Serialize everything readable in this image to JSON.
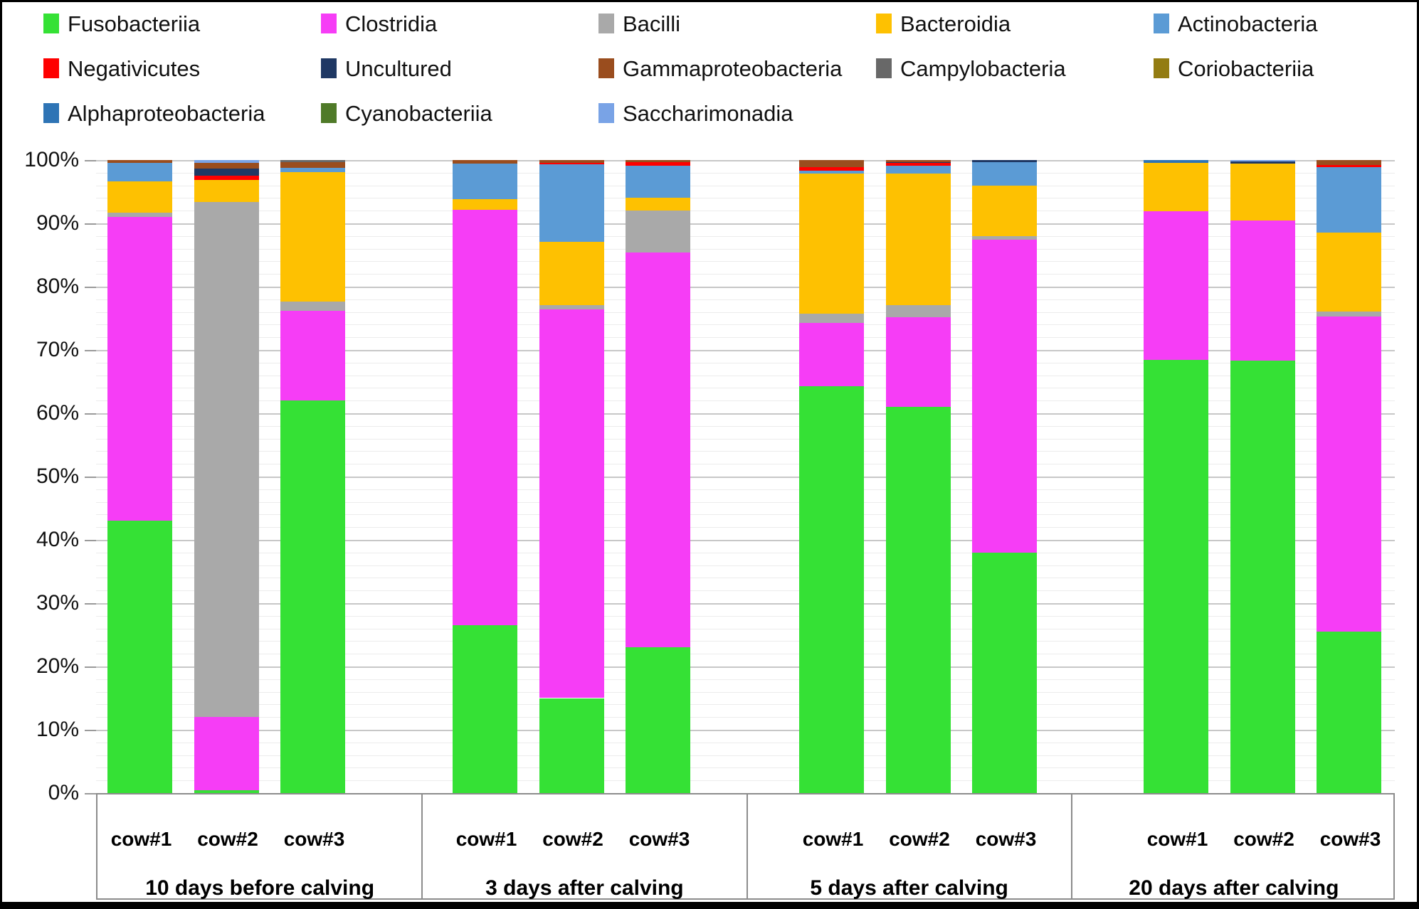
{
  "chart_data": {
    "type": "bar",
    "stacked": true,
    "title": "",
    "xlabel": "",
    "ylabel": "",
    "units": "percent",
    "grid": "horizontal, minor every 2%, major every 10%",
    "legend_position": "top",
    "y_axis": {
      "min": 0,
      "max": 100,
      "major_step": 10,
      "minor_step": 2,
      "tick_labels": [
        "0%",
        "10%",
        "20%",
        "30%",
        "40%",
        "50%",
        "60%",
        "70%",
        "80%",
        "90%",
        "100%"
      ]
    },
    "classes": [
      {
        "name": "Fusobacteriia",
        "color": "#35e135"
      },
      {
        "name": "Clostridia",
        "color": "#f63df6"
      },
      {
        "name": "Bacilli",
        "color": "#a9a9a9"
      },
      {
        "name": "Bacteroidia",
        "color": "#fec101"
      },
      {
        "name": "Actinobacteria",
        "color": "#5b9bd5"
      },
      {
        "name": "Negativicutes",
        "color": "#fe0000"
      },
      {
        "name": "Uncultured",
        "color": "#1f3864"
      },
      {
        "name": "Gammaproteobacteria",
        "color": "#9a4d1e"
      },
      {
        "name": "Campylobacteria",
        "color": "#686868"
      },
      {
        "name": "Coriobacteriia",
        "color": "#937c12"
      },
      {
        "name": "Alphaproteobacteria",
        "color": "#2e74b5"
      },
      {
        "name": "Cyanobacteriia",
        "color": "#4f7a28"
      },
      {
        "name": "Saccharimonadia",
        "color": "#79a3e6"
      }
    ],
    "groups": [
      {
        "label": "10 days before calving",
        "bars": [
          {
            "label": "cow#1",
            "values": {
              "Fusobacteriia": 43.0,
              "Clostridia": 48.0,
              "Bacilli": 0.7,
              "Bacteroidia": 4.9,
              "Actinobacteria": 3.0,
              "Gammaproteobacteria": 0.4
            }
          },
          {
            "label": "cow#2",
            "values": {
              "Fusobacteriia": 0.5,
              "Clostridia": 11.5,
              "Bacilli": 81.4,
              "Bacteroidia": 3.4,
              "Negativicutes": 0.7,
              "Uncultured": 1.1,
              "Gammaproteobacteria": 0.9,
              "Saccharimonadia": 0.5
            }
          },
          {
            "label": "cow#3",
            "values": {
              "Fusobacteriia": 62.0,
              "Clostridia": 14.2,
              "Bacilli": 1.4,
              "Bacteroidia": 20.5,
              "Actinobacteria": 0.7,
              "Gammaproteobacteria": 0.9,
              "Campylobacteria": 0.3
            }
          }
        ]
      },
      {
        "label": "3 days after calving",
        "bars": [
          {
            "label": "cow#1",
            "values": {
              "Fusobacteriia": 26.5,
              "Clostridia": 65.6,
              "Bacteroidia": 1.7,
              "Actinobacteria": 5.6,
              "Gammaproteobacteria": 0.6
            }
          },
          {
            "label": "cow#2",
            "values": {
              "Fusobacteriia": 15.0,
              "Clostridia": 61.4,
              "Bacilli": 0.7,
              "Bacteroidia": 10.0,
              "Actinobacteria": 12.2,
              "Negativicutes": 0.3,
              "Gammaproteobacteria": 0.4
            }
          },
          {
            "label": "cow#3",
            "values": {
              "Fusobacteriia": 23.0,
              "Clostridia": 62.4,
              "Bacilli": 6.6,
              "Bacteroidia": 2.0,
              "Actinobacteria": 5.1,
              "Negativicutes": 0.6,
              "Gammaproteobacteria": 0.3
            }
          }
        ]
      },
      {
        "label": "5 days after calving",
        "bars": [
          {
            "label": "cow#1",
            "values": {
              "Fusobacteriia": 64.3,
              "Clostridia": 10.0,
              "Bacilli": 1.4,
              "Bacteroidia": 22.2,
              "Actinobacteria": 0.4,
              "Negativicutes": 0.6,
              "Gammaproteobacteria": 1.1
            }
          },
          {
            "label": "cow#2",
            "values": {
              "Fusobacteriia": 61.0,
              "Clostridia": 14.2,
              "Bacilli": 1.9,
              "Bacteroidia": 20.8,
              "Actinobacteria": 1.2,
              "Negativicutes": 0.4,
              "Uncultured": 0.2,
              "Gammaproteobacteria": 0.3
            }
          },
          {
            "label": "cow#3",
            "values": {
              "Fusobacteriia": 38.0,
              "Clostridia": 49.4,
              "Bacilli": 0.6,
              "Bacteroidia": 8.0,
              "Actinobacteria": 3.7,
              "Uncultured": 0.3
            }
          }
        ]
      },
      {
        "label": "20 days after calving",
        "bars": [
          {
            "label": "cow#1",
            "values": {
              "Fusobacteriia": 68.4,
              "Clostridia": 23.5,
              "Bacteroidia": 7.6,
              "Alphaproteobacteria": 0.5
            }
          },
          {
            "label": "cow#2",
            "values": {
              "Fusobacteriia": 68.3,
              "Clostridia": 22.1,
              "Bacteroidia": 9.0,
              "Uncultured": 0.4,
              "Saccharimonadia": 0.2
            }
          },
          {
            "label": "cow#3",
            "values": {
              "Fusobacteriia": 25.5,
              "Clostridia": 49.8,
              "Bacilli": 0.8,
              "Bacteroidia": 12.4,
              "Actinobacteria": 10.4,
              "Negativicutes": 0.3,
              "Gammaproteobacteria": 0.8
            }
          }
        ]
      }
    ]
  }
}
